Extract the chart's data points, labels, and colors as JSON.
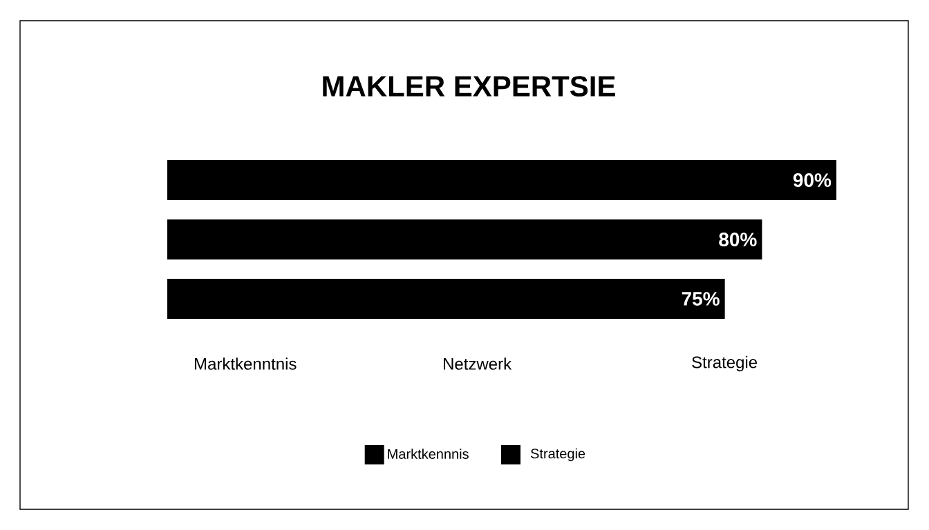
{
  "chart_data": {
    "type": "bar",
    "orientation": "horizontal",
    "title": "MAKLER EXPERTSIE",
    "categories": [
      null,
      null,
      null
    ],
    "annotations": [
      "Marktkenntnis",
      "Netzwerk",
      "Strategie",
      "Strategie"
    ],
    "series": [
      {
        "name": "Marktkennnis",
        "color": "#000000",
        "values": [
          90,
          80,
          75
        ],
        "value_labels": [
          "90%",
          "80%",
          "75%"
        ]
      }
    ],
    "legend": "bottom"
  }
}
